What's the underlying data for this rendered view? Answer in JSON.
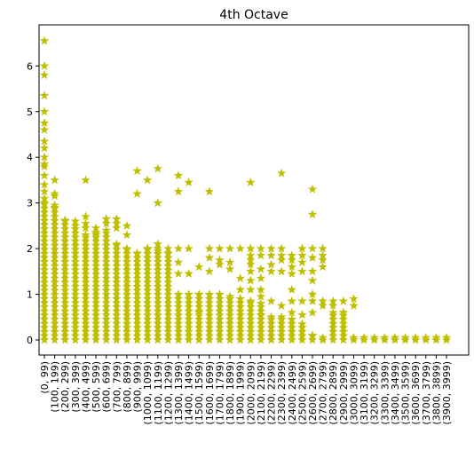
{
  "chart_data": {
    "type": "scatter",
    "title": "4th Octave",
    "xlabel": "",
    "ylabel": "",
    "ylim": [
      -0.33,
      6.9
    ],
    "yticks": [
      0,
      1,
      2,
      3,
      4,
      5,
      6
    ],
    "categories": [
      "(0, 99)",
      "(100, 199)",
      "(200, 299)",
      "(300, 399)",
      "(400, 499)",
      "(500, 599)",
      "(600, 699)",
      "(700, 799)",
      "(800, 899)",
      "(900, 999)",
      "(1000, 1099)",
      "(1100, 1199)",
      "(1200, 1299)",
      "(1300, 1399)",
      "(1400, 1499)",
      "(1500, 1599)",
      "(1600, 1699)",
      "(1700, 1799)",
      "(1800, 1899)",
      "(1900, 1999)",
      "(2000, 2099)",
      "(2100, 2199)",
      "(2200, 2299)",
      "(2300, 2399)",
      "(2400, 2499)",
      "(2500, 2599)",
      "(2600, 2699)",
      "(2700, 2799)",
      "(2800, 2899)",
      "(2900, 2999)",
      "(3000, 3099)",
      "(3100, 3199)",
      "(3200, 3299)",
      "(3300, 3399)",
      "(3400, 3499)",
      "(3500, 3599)",
      "(3600, 3699)",
      "(3700, 3799)",
      "(3800, 3899)",
      "(3900, 3999)"
    ],
    "marker": "star",
    "color": "#bfbf00",
    "grid": false,
    "legend": "none",
    "series": [
      {
        "dense_max": [
          3.0,
          2.9,
          2.6,
          2.5,
          2.3,
          2.35,
          2.4,
          2.1,
          2.0,
          1.9,
          2.0,
          1.95,
          1.9,
          1.0,
          1.0,
          1.0,
          1.0,
          1.0,
          0.95,
          0.9,
          0.85,
          0.8,
          0.5,
          0.5,
          0.45,
          0.35,
          0.1,
          0.05,
          0.6,
          0.6,
          0.05,
          0.05,
          0.05,
          0.05,
          0.05,
          0.05,
          0.05,
          0.05,
          0.05,
          0.05
        ],
        "outliers": [
          [
            6.55,
            6.0,
            5.8,
            5.35,
            5.0,
            4.75,
            4.6,
            4.35,
            4.2,
            4.0,
            3.85,
            3.8,
            3.6,
            3.4,
            3.25,
            3.1
          ],
          [
            3.5,
            3.2,
            3.15,
            2.95
          ],
          [
            2.62
          ],
          [
            2.6
          ],
          [
            3.5,
            2.7,
            2.55,
            2.45
          ],
          [
            2.45,
            2.3
          ],
          [
            2.65,
            2.55
          ],
          [
            2.65,
            2.55,
            2.45
          ],
          [
            2.5,
            2.3
          ],
          [
            3.7,
            3.2
          ],
          [
            3.5,
            2.0,
            1.8
          ],
          [
            3.75,
            3.0,
            2.1,
            2.0
          ],
          [
            2.0
          ],
          [
            3.6,
            3.25,
            2.0,
            1.7,
            1.45
          ],
          [
            3.45,
            2.0,
            1.45
          ],
          [
            1.6,
            0.6
          ],
          [
            3.25,
            2.0,
            1.8,
            1.5
          ],
          [
            2.0,
            1.75,
            1.65
          ],
          [
            2.0,
            1.7,
            1.55
          ],
          [
            2.0,
            1.35,
            1.1
          ],
          [
            3.45,
            2.0,
            1.85,
            1.75,
            1.65,
            1.5,
            1.3,
            1.1
          ],
          [
            2.0,
            1.85,
            1.55,
            1.35,
            1.1,
            0.95,
            0.55
          ],
          [
            2.0,
            1.85,
            1.65,
            1.5,
            0.85
          ],
          [
            3.65,
            2.0,
            1.85,
            1.75,
            1.5,
            0.75
          ],
          [
            1.85,
            1.75,
            1.6,
            1.45,
            1.1,
            0.85,
            0.6
          ],
          [
            2.0,
            1.85,
            1.7,
            1.5,
            0.85,
            0.55
          ],
          [
            3.3,
            2.75,
            2.0,
            1.8,
            1.5,
            1.3,
            1.0,
            0.85,
            0.6
          ],
          [
            2.0,
            1.85,
            1.75,
            1.6,
            0.85,
            0.75
          ],
          [
            0.85,
            0.75
          ],
          [
            0.85,
            0.6
          ],
          [
            0.9,
            0.75
          ],
          [],
          [],
          [],
          [],
          [],
          [],
          [],
          [],
          []
        ]
      }
    ]
  }
}
